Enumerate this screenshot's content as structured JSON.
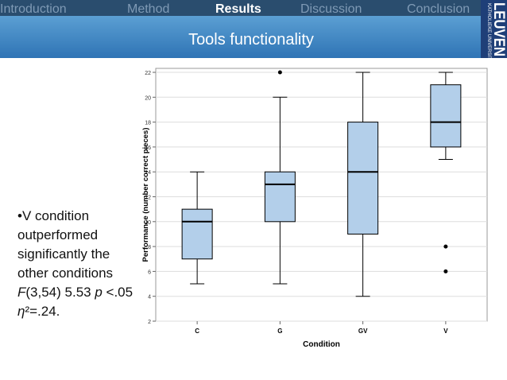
{
  "nav": [
    "Introduction",
    "Method",
    "Results",
    "Discussion",
    "Conclusion"
  ],
  "active_tab": 2,
  "logo": {
    "name": "LEUVEN",
    "subtitle": "KATHOLIEKE UNIVERSITEIT"
  },
  "title": "Tools functionality",
  "bullet": [
    "•",
    "V condition outperformed significantly the other conditions ",
    "F",
    "(3,54) 5.53 ",
    "p",
    " <.05 ",
    "η",
    "²=.24."
  ],
  "chart_data": {
    "type": "box",
    "xlabel": "Condition",
    "ylabel": "Performance (number correct pieces)",
    "categories": [
      "C",
      "G",
      "GV",
      "V"
    ],
    "boxes": [
      {
        "min": 5,
        "q1": 7,
        "median": 10,
        "q3": 11,
        "max": 14
      },
      {
        "min": 5,
        "q1": 10,
        "median": 13,
        "q3": 14,
        "max": 20,
        "outliers": [
          22
        ]
      },
      {
        "min": 4,
        "q1": 9,
        "median": 14,
        "q3": 18,
        "max": 22
      },
      {
        "min": 15,
        "q1": 16,
        "median": 18,
        "q3": 21,
        "max": 22,
        "outliers": [
          8,
          6
        ]
      }
    ],
    "color": "#b3cfea",
    "ylim": [
      2,
      22
    ],
    "yticks": [
      2,
      4,
      6,
      8,
      10,
      12,
      14,
      16,
      18,
      20,
      22
    ],
    "grid": true
  }
}
